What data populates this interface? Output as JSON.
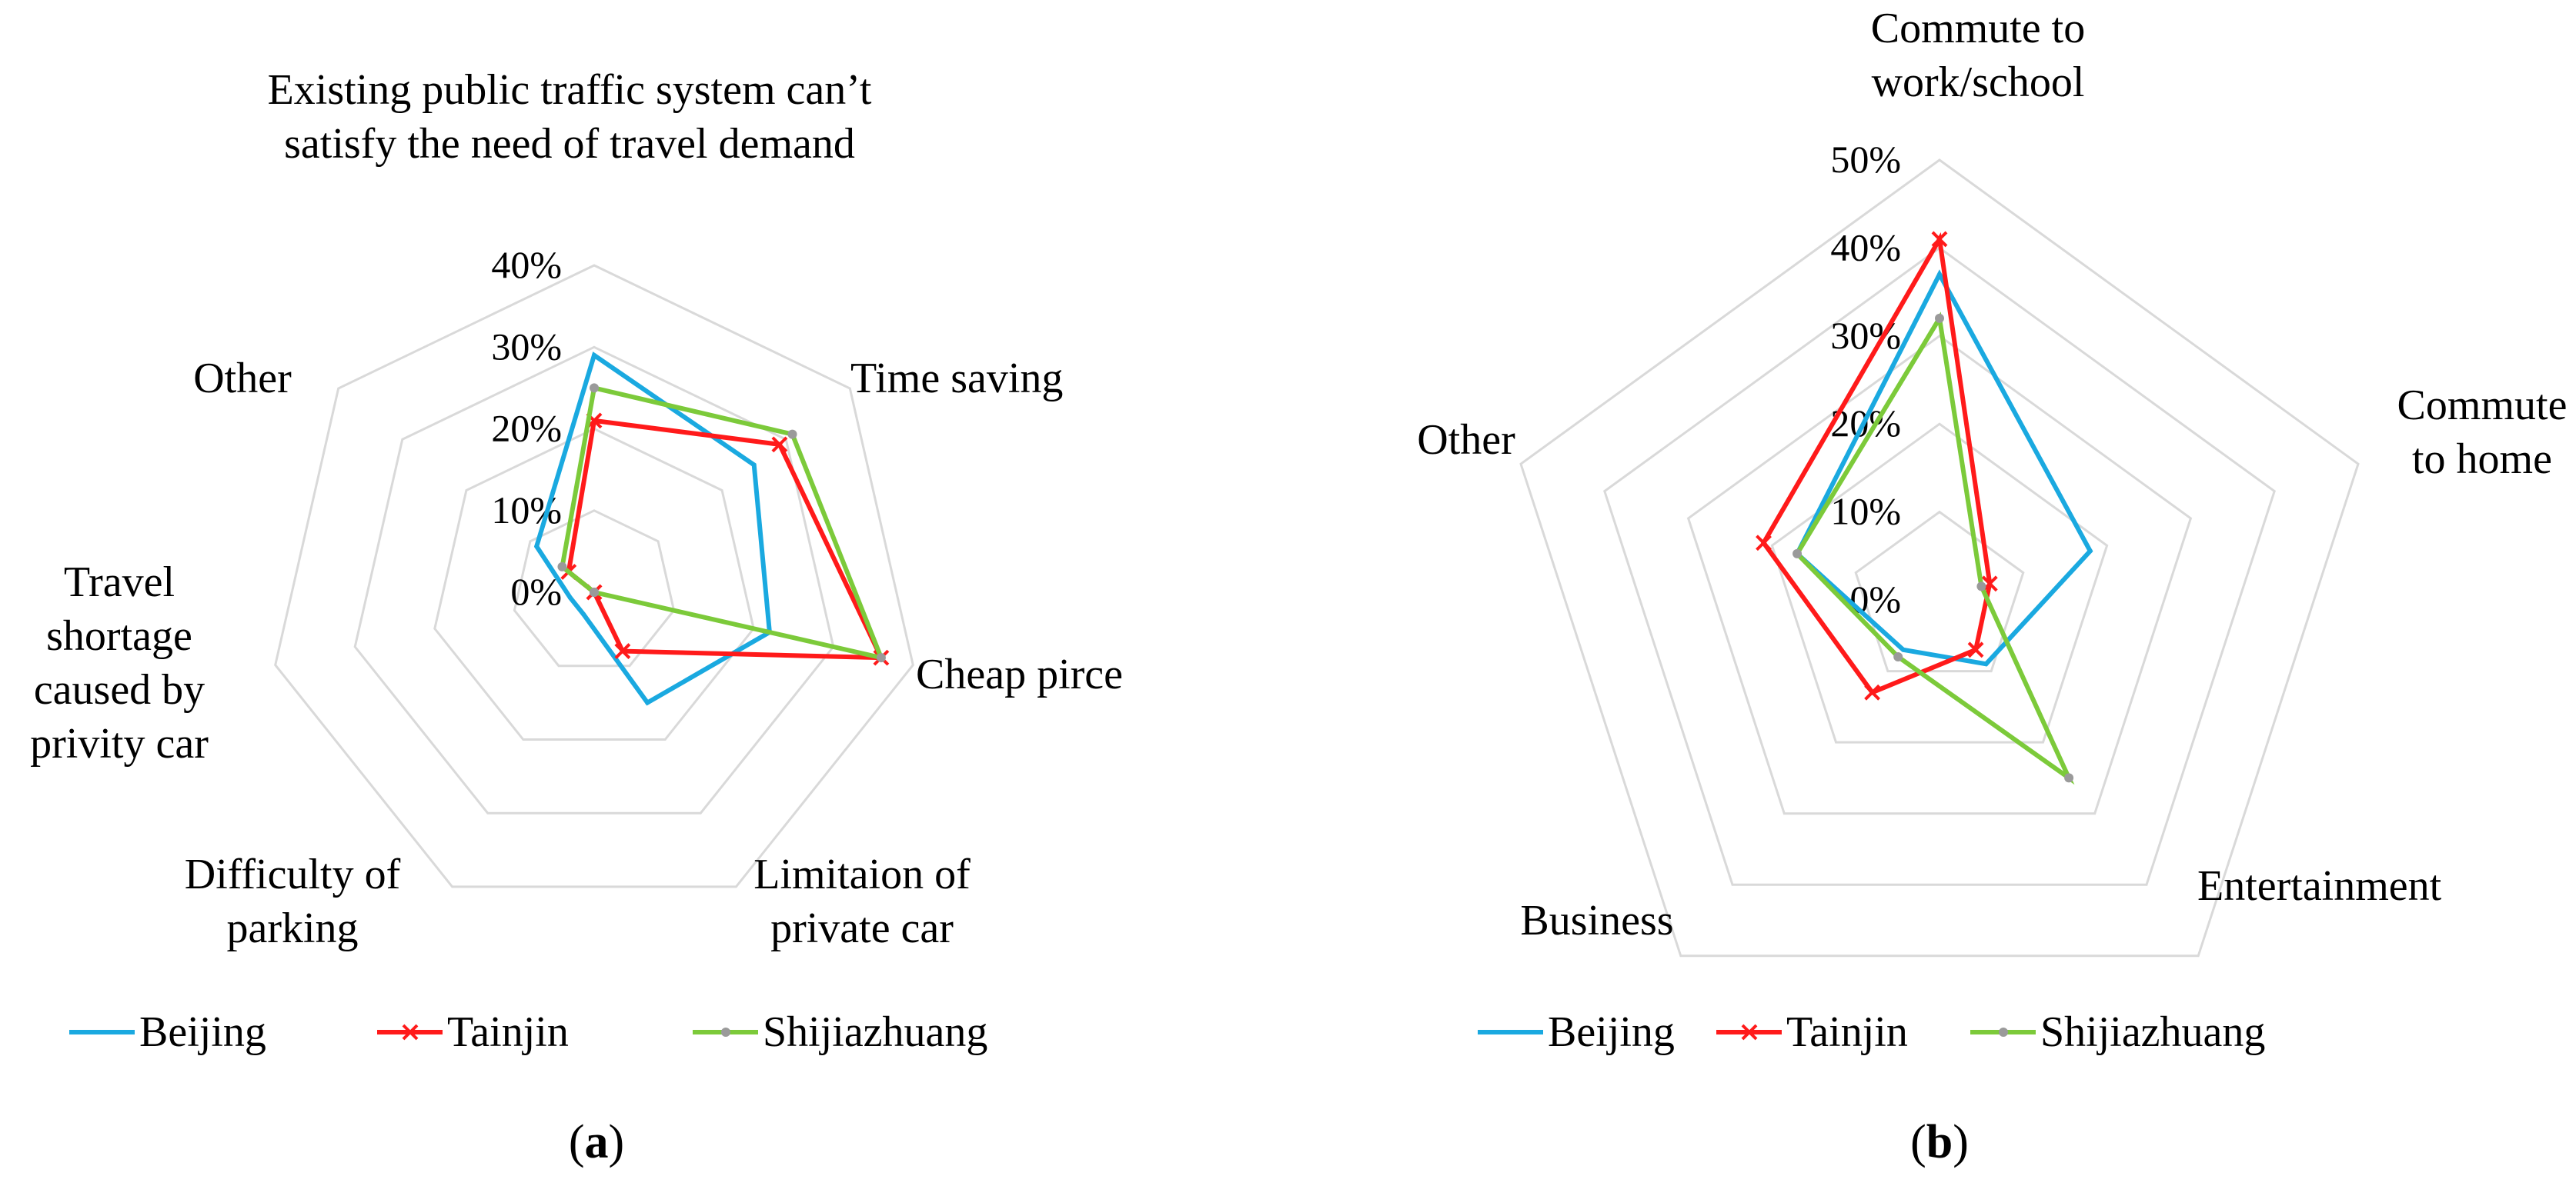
{
  "chart_data": [
    {
      "type": "radar",
      "panel_label": {
        "open": "(",
        "letter": "a",
        "close": ")"
      },
      "title": "",
      "categories": [
        "Existing public traffic system can’t satisfy the need of travel demand",
        "Time saving",
        "Cheap pirce",
        "Limitaion of private car",
        "Difficulty of parking",
        "Travel shortage caused by privity car",
        "Other"
      ],
      "category_label_lines": [
        [
          "Existing public traffic system can’t",
          "satisfy the need of travel demand"
        ],
        [
          "Time saving"
        ],
        [
          "Cheap pirce"
        ],
        [
          "Limitaion of",
          "private car"
        ],
        [
          "Difficulty of",
          "parking"
        ],
        [
          "Travel",
          "shortage",
          "caused by",
          "privity car"
        ],
        [
          "Other"
        ]
      ],
      "rmax": 40,
      "ticks": [
        0,
        10,
        20,
        30,
        40
      ],
      "tick_labels": [
        "0%",
        "10%",
        "20%",
        "30%",
        "40%"
      ],
      "series": [
        {
          "name": "Beijing",
          "color": "#1aa9e0",
          "marker": "none",
          "values": [
            29,
            25,
            22,
            15,
            3,
            3,
            9
          ]
        },
        {
          "name": "Tainjin",
          "color": "#ff1a1a",
          "marker": "x",
          "values": [
            21,
            29,
            36,
            8,
            0,
            0,
            4
          ]
        },
        {
          "name": "Shijiazhuang",
          "color": "#7cca3a",
          "marker": "dot",
          "values": [
            25,
            31,
            36,
            0,
            0,
            0,
            5
          ]
        }
      ],
      "legend": "bottom",
      "grid": true
    },
    {
      "type": "radar",
      "panel_label": {
        "open": "(",
        "letter": "b",
        "close": ")"
      },
      "title": "",
      "categories": [
        "Commute to work/school",
        "Commute to home",
        "Entertainment",
        "Business",
        "Other"
      ],
      "category_label_lines": [
        [
          "Commute to",
          "work/school"
        ],
        [
          "Commute",
          "to home"
        ],
        [
          "Entertainment"
        ],
        [
          "Business"
        ],
        [
          "Other"
        ]
      ],
      "rmax": 50,
      "ticks": [
        0,
        10,
        20,
        30,
        40,
        50
      ],
      "tick_labels": [
        "0%",
        "10%",
        "20%",
        "30%",
        "40%",
        "50%"
      ],
      "series": [
        {
          "name": "Beijing",
          "color": "#1aa9e0",
          "marker": "none",
          "values": [
            37,
            18,
            9,
            7,
            17
          ]
        },
        {
          "name": "Tainjin",
          "color": "#ff1a1a",
          "marker": "x",
          "values": [
            41,
            6,
            7,
            13,
            21
          ]
        },
        {
          "name": "Shijiazhuang",
          "color": "#7cca3a",
          "marker": "dot",
          "values": [
            32,
            5,
            25,
            8,
            17
          ]
        }
      ],
      "legend": "bottom",
      "grid": true
    }
  ]
}
